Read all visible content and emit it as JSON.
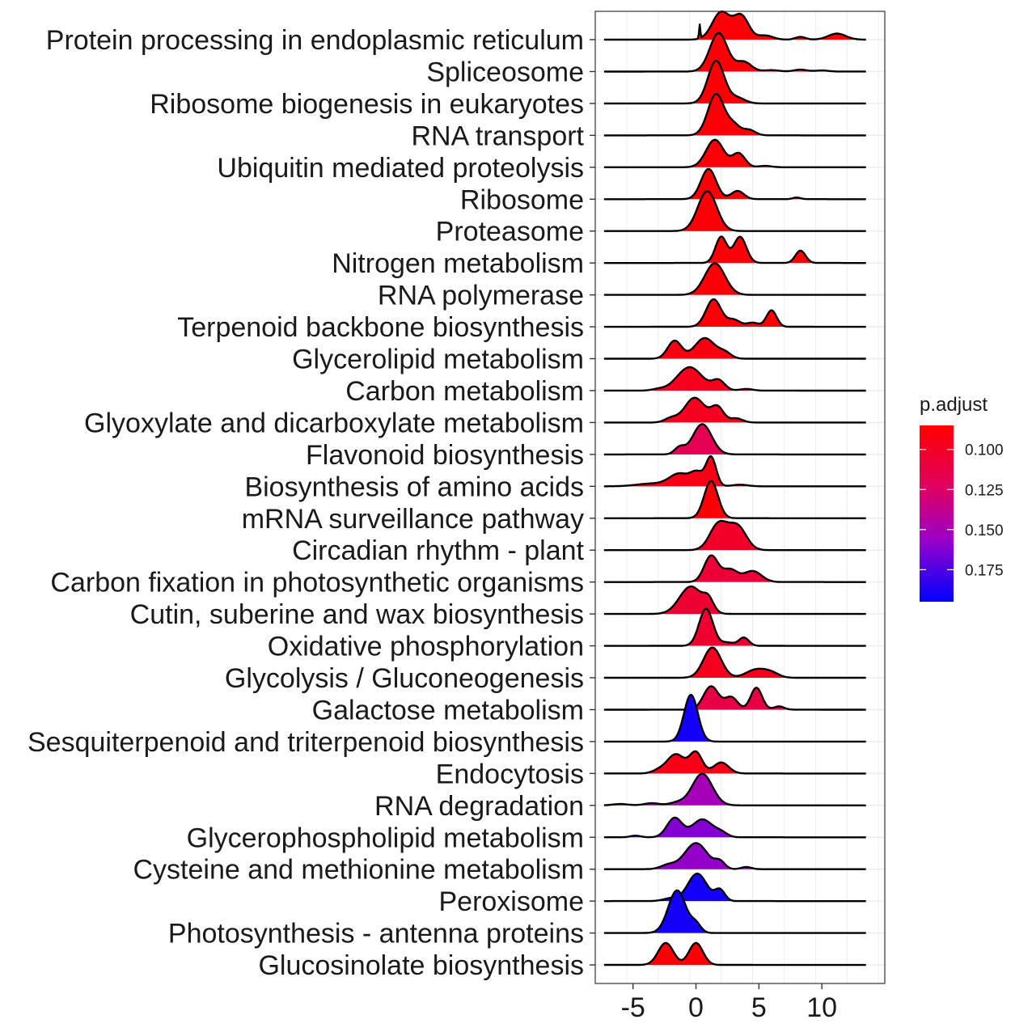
{
  "chart_data": {
    "type": "ridgeline",
    "xlabel": "",
    "ylabel": "",
    "xlim": [
      -8,
      15
    ],
    "xticks": [
      -5,
      0,
      5,
      10
    ],
    "xtick_labels": [
      "-5",
      "0",
      "5",
      "10"
    ],
    "grid": true,
    "legend": {
      "title": "p.adjust",
      "position": "right",
      "ticks": [
        0.1,
        0.125,
        0.15,
        0.175
      ],
      "tick_labels": [
        "0.100",
        "0.125",
        "0.150",
        "0.175"
      ],
      "range": [
        0.085,
        0.195
      ],
      "color_low": "#FF0000",
      "color_high": "#0000FF"
    },
    "series": [
      {
        "name": "Protein processing in endoplasmic reticulum",
        "p_adjust": 0.088,
        "x_start": -7.3,
        "x_end": 13.5,
        "peaks": [
          [
            0.3,
            0.5,
            0.05
          ],
          [
            2.0,
            1.0,
            0.7
          ],
          [
            3.6,
            0.85,
            0.6
          ],
          [
            5.5,
            0.15,
            0.6
          ],
          [
            8.3,
            0.1,
            0.4
          ],
          [
            11.2,
            0.22,
            0.7
          ]
        ]
      },
      {
        "name": "Spliceosome",
        "p_adjust": 0.088,
        "x_start": -7.3,
        "x_end": 13.5,
        "peaks": [
          [
            1.8,
            1.4,
            0.7
          ],
          [
            3.8,
            0.35,
            0.6
          ],
          [
            6.0,
            0.05,
            0.6
          ],
          [
            8.3,
            0.07,
            0.5
          ],
          [
            10.0,
            0.04,
            0.5
          ]
        ]
      },
      {
        "name": "Ribosome biogenesis in eukaryotes",
        "p_adjust": 0.088,
        "x_start": -7.3,
        "x_end": 13.5,
        "peaks": [
          [
            1.6,
            1.55,
            0.65
          ],
          [
            3.3,
            0.2,
            0.6
          ]
        ]
      },
      {
        "name": "RNA transport",
        "p_adjust": 0.088,
        "x_start": -7.3,
        "x_end": 13.5,
        "peaks": [
          [
            1.6,
            1.5,
            0.65
          ],
          [
            3.0,
            0.35,
            0.5
          ],
          [
            4.2,
            0.2,
            0.5
          ]
        ]
      },
      {
        "name": "Ubiquitin mediated proteolysis",
        "p_adjust": 0.088,
        "x_start": -7.3,
        "x_end": 13.5,
        "peaks": [
          [
            1.5,
            1.0,
            0.7
          ],
          [
            3.4,
            0.5,
            0.5
          ],
          [
            5.5,
            0.05,
            0.5
          ]
        ]
      },
      {
        "name": "Ribosome",
        "p_adjust": 0.088,
        "x_start": -7.3,
        "x_end": 13.5,
        "peaks": [
          [
            1.0,
            1.1,
            0.6
          ],
          [
            3.3,
            0.3,
            0.5
          ],
          [
            8.0,
            0.06,
            0.3
          ]
        ]
      },
      {
        "name": "Proteasome",
        "p_adjust": 0.088,
        "x_start": -7.3,
        "x_end": 13.5,
        "peaks": [
          [
            0.9,
            1.45,
            0.75
          ]
        ]
      },
      {
        "name": "Nitrogen metabolism",
        "p_adjust": 0.088,
        "x_start": -7.3,
        "x_end": 13.5,
        "peaks": [
          [
            2.0,
            0.95,
            0.45
          ],
          [
            3.5,
            0.95,
            0.5
          ],
          [
            8.3,
            0.45,
            0.4
          ]
        ]
      },
      {
        "name": "RNA polymerase",
        "p_adjust": 0.088,
        "x_start": -7.3,
        "x_end": 13.5,
        "peaks": [
          [
            1.5,
            1.15,
            0.8
          ]
        ]
      },
      {
        "name": "Terpenoid backbone biosynthesis",
        "p_adjust": 0.088,
        "x_start": -7.3,
        "x_end": 13.5,
        "peaks": [
          [
            1.4,
            1.0,
            0.6
          ],
          [
            3.0,
            0.25,
            0.5
          ],
          [
            6.0,
            0.6,
            0.4
          ],
          [
            4.5,
            0.15,
            0.5
          ]
        ]
      },
      {
        "name": "Glycerolipid metabolism",
        "p_adjust": 0.092,
        "x_start": -7.3,
        "x_end": 13.5,
        "peaks": [
          [
            -1.7,
            0.65,
            0.55
          ],
          [
            0.7,
            0.75,
            0.8
          ],
          [
            2.3,
            0.2,
            0.5
          ]
        ]
      },
      {
        "name": "Carbon metabolism",
        "p_adjust": 0.096,
        "x_start": -7.3,
        "x_end": 13.5,
        "peaks": [
          [
            -0.5,
            0.85,
            1.0
          ],
          [
            1.8,
            0.35,
            0.5
          ],
          [
            4.0,
            0.06,
            0.5
          ],
          [
            -3.0,
            0.05,
            0.5
          ]
        ]
      },
      {
        "name": "Glyoxylate and dicarboxylate metabolism",
        "p_adjust": 0.097,
        "x_start": -7.3,
        "x_end": 13.5,
        "peaks": [
          [
            -0.1,
            0.9,
            0.8
          ],
          [
            1.7,
            0.55,
            0.5
          ],
          [
            3.2,
            0.15,
            0.5
          ],
          [
            -2.0,
            0.15,
            0.5
          ]
        ]
      },
      {
        "name": "Flavonoid biosynthesis",
        "p_adjust": 0.118,
        "x_start": -7.3,
        "x_end": 13.5,
        "peaks": [
          [
            0.5,
            1.1,
            0.75
          ],
          [
            -1.3,
            0.25,
            0.4
          ]
        ]
      },
      {
        "name": "Biosynthesis of amino acids",
        "p_adjust": 0.094,
        "x_start": -7.3,
        "x_end": 13.5,
        "peaks": [
          [
            1.2,
            1.05,
            0.4
          ],
          [
            -1.3,
            0.45,
            0.8
          ],
          [
            0.1,
            0.45,
            0.5
          ],
          [
            -3.5,
            0.1,
            1.2
          ],
          [
            3.5,
            0.06,
            0.6
          ]
        ]
      },
      {
        "name": "mRNA surveillance pathway",
        "p_adjust": 0.088,
        "x_start": -7.3,
        "x_end": 13.5,
        "peaks": [
          [
            1.2,
            1.35,
            0.55
          ]
        ]
      },
      {
        "name": "Circadian rhythm - plant",
        "p_adjust": 0.101,
        "x_start": -7.3,
        "x_end": 13.5,
        "peaks": [
          [
            1.8,
            0.95,
            0.7
          ],
          [
            3.3,
            0.85,
            0.7
          ]
        ]
      },
      {
        "name": "Carbon fixation in photosynthetic organisms",
        "p_adjust": 0.107,
        "x_start": -7.3,
        "x_end": 13.5,
        "peaks": [
          [
            1.2,
            0.95,
            0.55
          ],
          [
            2.7,
            0.45,
            0.6
          ],
          [
            4.5,
            0.4,
            0.7
          ]
        ]
      },
      {
        "name": "Cutin, suberine and wax biosynthesis",
        "p_adjust": 0.105,
        "x_start": -7.3,
        "x_end": 13.5,
        "peaks": [
          [
            -0.4,
            1.0,
            0.9
          ],
          [
            1.0,
            0.4,
            0.4
          ]
        ]
      },
      {
        "name": "Oxidative phosphorylation",
        "p_adjust": 0.104,
        "x_start": -7.3,
        "x_end": 13.5,
        "peaks": [
          [
            0.8,
            1.35,
            0.55
          ],
          [
            3.8,
            0.3,
            0.4
          ],
          [
            2.5,
            0.12,
            0.5
          ]
        ]
      },
      {
        "name": "Glycolysis / Gluconeogenesis",
        "p_adjust": 0.097,
        "x_start": -7.3,
        "x_end": 13.5,
        "peaks": [
          [
            1.3,
            1.1,
            0.7
          ],
          [
            4.8,
            0.3,
            0.8
          ],
          [
            6.0,
            0.15,
            0.6
          ]
        ]
      },
      {
        "name": "Galactose metabolism",
        "p_adjust": 0.113,
        "x_start": -7.3,
        "x_end": 13.5,
        "peaks": [
          [
            1.2,
            0.85,
            0.6
          ],
          [
            2.8,
            0.45,
            0.5
          ],
          [
            4.8,
            0.8,
            0.45
          ],
          [
            6.6,
            0.12,
            0.4
          ]
        ]
      },
      {
        "name": "Sesquiterpenoid and triterpenoid biosynthesis",
        "p_adjust": 0.19,
        "x_start": -7.3,
        "x_end": 13.5,
        "peaks": [
          [
            -0.4,
            1.7,
            0.55
          ]
        ]
      },
      {
        "name": "Endocytosis",
        "p_adjust": 0.094,
        "x_start": -7.3,
        "x_end": 13.5,
        "peaks": [
          [
            -1.6,
            0.7,
            0.7
          ],
          [
            0.0,
            0.75,
            0.5
          ],
          [
            2.0,
            0.4,
            0.6
          ],
          [
            -3.0,
            0.1,
            0.5
          ]
        ]
      },
      {
        "name": "RNA degradation",
        "p_adjust": 0.151,
        "x_start": -7.3,
        "x_end": 13.5,
        "peaks": [
          [
            0.5,
            1.15,
            0.8
          ],
          [
            -3.5,
            0.08,
            0.6
          ],
          [
            -6.0,
            0.05,
            0.6
          ],
          [
            -1.5,
            0.1,
            0.6
          ]
        ]
      },
      {
        "name": "Glycerophospholipid metabolism",
        "p_adjust": 0.162,
        "x_start": -7.3,
        "x_end": 13.5,
        "peaks": [
          [
            -1.7,
            0.7,
            0.6
          ],
          [
            0.5,
            0.65,
            0.8
          ],
          [
            -4.8,
            0.06,
            0.4
          ],
          [
            2.0,
            0.15,
            0.5
          ]
        ]
      },
      {
        "name": "Cysteine and methionine metabolism",
        "p_adjust": 0.158,
        "x_start": -7.3,
        "x_end": 13.5,
        "peaks": [
          [
            0.0,
            0.95,
            0.9
          ],
          [
            -2.2,
            0.15,
            0.6
          ],
          [
            1.9,
            0.25,
            0.4
          ],
          [
            4.0,
            0.08,
            0.4
          ]
        ]
      },
      {
        "name": "Peroxisome",
        "p_adjust": 0.19,
        "x_start": -7.3,
        "x_end": 13.5,
        "peaks": [
          [
            0.1,
            1.0,
            0.75
          ],
          [
            1.9,
            0.4,
            0.4
          ],
          [
            -2.0,
            0.1,
            0.6
          ]
        ]
      },
      {
        "name": "Photosynthesis - antenna proteins",
        "p_adjust": 0.19,
        "x_start": -7.3,
        "x_end": 13.5,
        "peaks": [
          [
            -1.5,
            1.55,
            0.7
          ],
          [
            0.0,
            0.3,
            0.4
          ]
        ]
      },
      {
        "name": "Glucosinolate biosynthesis",
        "p_adjust": 0.088,
        "x_start": -7.3,
        "x_end": 13.5,
        "peaks": [
          [
            -2.4,
            0.8,
            0.6
          ],
          [
            0.0,
            0.8,
            0.55
          ]
        ]
      }
    ]
  }
}
